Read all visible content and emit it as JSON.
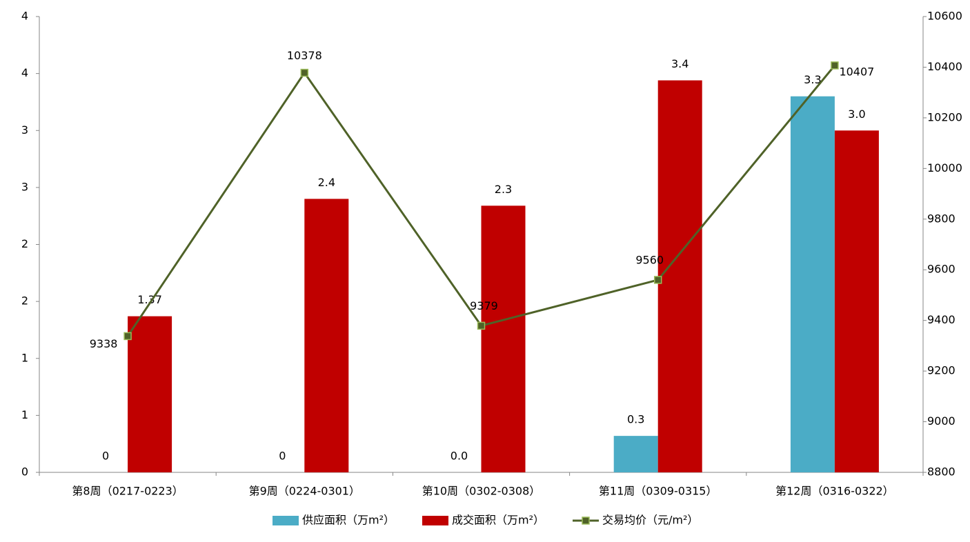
{
  "chart_data": {
    "type": "bar",
    "categories": [
      "第8周（0217-0223）",
      "第9周（0224-0301）",
      "第10周（0302-0308）",
      "第11周（0309-0315）",
      "第12周（0316-0322）"
    ],
    "series": [
      {
        "name": "供应面积（万m²）",
        "type": "bar",
        "color": "#4bacc6",
        "values": [
          0,
          0,
          0,
          0.32,
          3.3
        ],
        "value_labels": [
          "0",
          "0",
          "0.0",
          "0.3",
          "3.3"
        ]
      },
      {
        "name": "成交面积（万m²）",
        "type": "bar",
        "color": "#c00000",
        "values": [
          1.37,
          2.4,
          2.34,
          3.44,
          3
        ],
        "value_labels": [
          "1.37",
          "2.4",
          "2.3",
          "3.4",
          "3.0"
        ]
      },
      {
        "name": "交易均价（元/m²）",
        "type": "line",
        "axis": "y2",
        "color": "#4f6228",
        "marker_color": "#9bbb59",
        "values": [
          9338,
          10378,
          9379,
          9560,
          10407
        ]
      }
    ],
    "ylim": [
      0,
      4
    ],
    "yticks": [
      0,
      {
        "value": 0.5,
        "label": "1"
      },
      1,
      {
        "value": 1.5,
        "label": "2"
      },
      2,
      {
        "value": 2.5,
        "label": "3"
      },
      3,
      {
        "value": 3.5,
        "label": "4"
      },
      4
    ],
    "y2lim": [
      8800,
      10600
    ],
    "y2ticks": [
      8800,
      9000,
      9200,
      9400,
      9600,
      9800,
      10000,
      10200,
      10400,
      10600
    ],
    "grid": false
  }
}
